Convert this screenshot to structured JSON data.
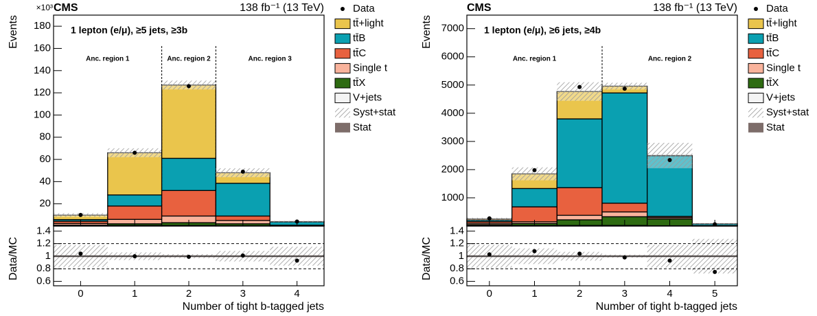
{
  "chart_data": [
    {
      "type": "bar",
      "stacked": true,
      "title": "CMS",
      "lumi": "138 fb⁻¹ (13 TeV)",
      "y_multiplier": "×10³",
      "selection": "1 lepton (e/μ), ≥5 jets, ≥3b",
      "regions": [
        {
          "label": "Anc. region 1",
          "from": -0.5,
          "to": 1.5
        },
        {
          "label": "Anc. region 2",
          "from": 1.5,
          "to": 2.5
        },
        {
          "label": "Anc. region 3",
          "from": 2.5,
          "to": 4.5
        }
      ],
      "x_label": "Number of tight b-tagged jets",
      "y_label": "Events",
      "ratio_label": "Data/MC",
      "x": [
        0,
        1,
        2,
        3,
        4
      ],
      "xlim": [
        -0.5,
        4.5
      ],
      "xticks": [
        0,
        1,
        2,
        3,
        4
      ],
      "ylim": [
        0,
        190
      ],
      "yticks": [
        20,
        40,
        60,
        80,
        100,
        120,
        140,
        160,
        180
      ],
      "series": [
        {
          "name": "V+jets",
          "color": "#f4f4f4",
          "values": [
            0.5,
            0.5,
            0.5,
            0.3,
            0.05
          ]
        },
        {
          "name": "tt̄X",
          "color": "#2e6b12",
          "values": [
            0.3,
            1.5,
            2.5,
            1.7,
            0.15
          ]
        },
        {
          "name": "Single t",
          "color": "#f9b39c",
          "values": [
            1.5,
            4,
            6,
            3,
            0.2
          ]
        },
        {
          "name": "tt̄C",
          "color": "#e8613f",
          "values": [
            2,
            12,
            23,
            4,
            0.3
          ]
        },
        {
          "name": "tt̄B",
          "color": "#0aa0b1",
          "values": [
            1.5,
            10,
            29,
            29.5,
            3
          ]
        },
        {
          "name": "tt̄+light",
          "color": "#eac54c",
          "values": [
            4,
            38,
            66,
            9.5,
            0.3
          ]
        }
      ],
      "data": {
        "name": "Data",
        "color": "#000000",
        "values": [
          10,
          66,
          126,
          49,
          4
        ]
      },
      "uncertainty": {
        "name": "Syst+stat",
        "values": [
          1.7,
          4,
          4,
          4,
          0.6
        ]
      },
      "stat": {
        "name": "Stat",
        "color": "#7d6d6a"
      },
      "ratio": {
        "values": [
          1.04,
          1.0,
          0.99,
          1.01,
          0.93
        ],
        "ylim": [
          0.53,
          1.48
        ],
        "yticks": [
          0.6,
          0.8,
          1,
          1.2,
          1.4
        ],
        "reference": 1,
        "dashed_lines": [
          0.8,
          1.2
        ]
      }
    },
    {
      "type": "bar",
      "stacked": true,
      "title": "CMS",
      "lumi": "138 fb⁻¹ (13 TeV)",
      "selection": "1 lepton (e/μ), ≥6 jets, ≥4b",
      "regions": [
        {
          "label": "Anc. region 1",
          "from": -0.5,
          "to": 2.5
        },
        {
          "label": "Anc. region 2",
          "from": 2.5,
          "to": 5.5
        }
      ],
      "x_label": "Number of tight b-tagged jets",
      "y_label": "Events",
      "ratio_label": "Data/MC",
      "x": [
        0,
        1,
        2,
        3,
        4,
        5
      ],
      "xlim": [
        -0.5,
        5.5
      ],
      "xticks": [
        0,
        1,
        2,
        3,
        4,
        5
      ],
      "ylim": [
        0,
        7480
      ],
      "yticks": [
        1000,
        2000,
        3000,
        4000,
        5000,
        6000,
        7000
      ],
      "series": [
        {
          "name": "V+jets",
          "color": "#f4f4f4",
          "values": [
            10,
            20,
            20,
            20,
            10,
            1
          ]
        },
        {
          "name": "tt̄X",
          "color": "#2e6b12",
          "values": [
            40,
            70,
            200,
            310,
            240,
            10
          ]
        },
        {
          "name": "Single t",
          "color": "#f9b39c",
          "values": [
            50,
            60,
            160,
            170,
            50,
            2
          ]
        },
        {
          "name": "tt̄C",
          "color": "#e8613f",
          "values": [
            60,
            530,
            980,
            310,
            40,
            2
          ]
        },
        {
          "name": "tt̄B",
          "color": "#0aa0b1",
          "values": [
            50,
            650,
            2440,
            3910,
            2150,
            60
          ]
        },
        {
          "name": "tt̄+light",
          "color": "#eac54c",
          "values": [
            40,
            520,
            970,
            240,
            10,
            5
          ]
        }
      ],
      "data": {
        "name": "Data",
        "color": "#000000",
        "values": [
          270,
          1980,
          4930,
          4870,
          2340,
          60
        ]
      },
      "uncertainty": {
        "name": "Syst+stat",
        "values": [
          45,
          230,
          330,
          120,
          450,
          22
        ]
      },
      "stat": {
        "name": "Stat",
        "color": "#7d6d6a"
      },
      "ratio": {
        "values": [
          1.03,
          1.08,
          1.04,
          0.98,
          0.93,
          0.75
        ],
        "ylim": [
          0.53,
          1.48
        ],
        "yticks": [
          0.6,
          0.8,
          1,
          1.2,
          1.4
        ],
        "reference": 1,
        "dashed_lines": [
          0.8,
          1.2
        ]
      }
    }
  ]
}
